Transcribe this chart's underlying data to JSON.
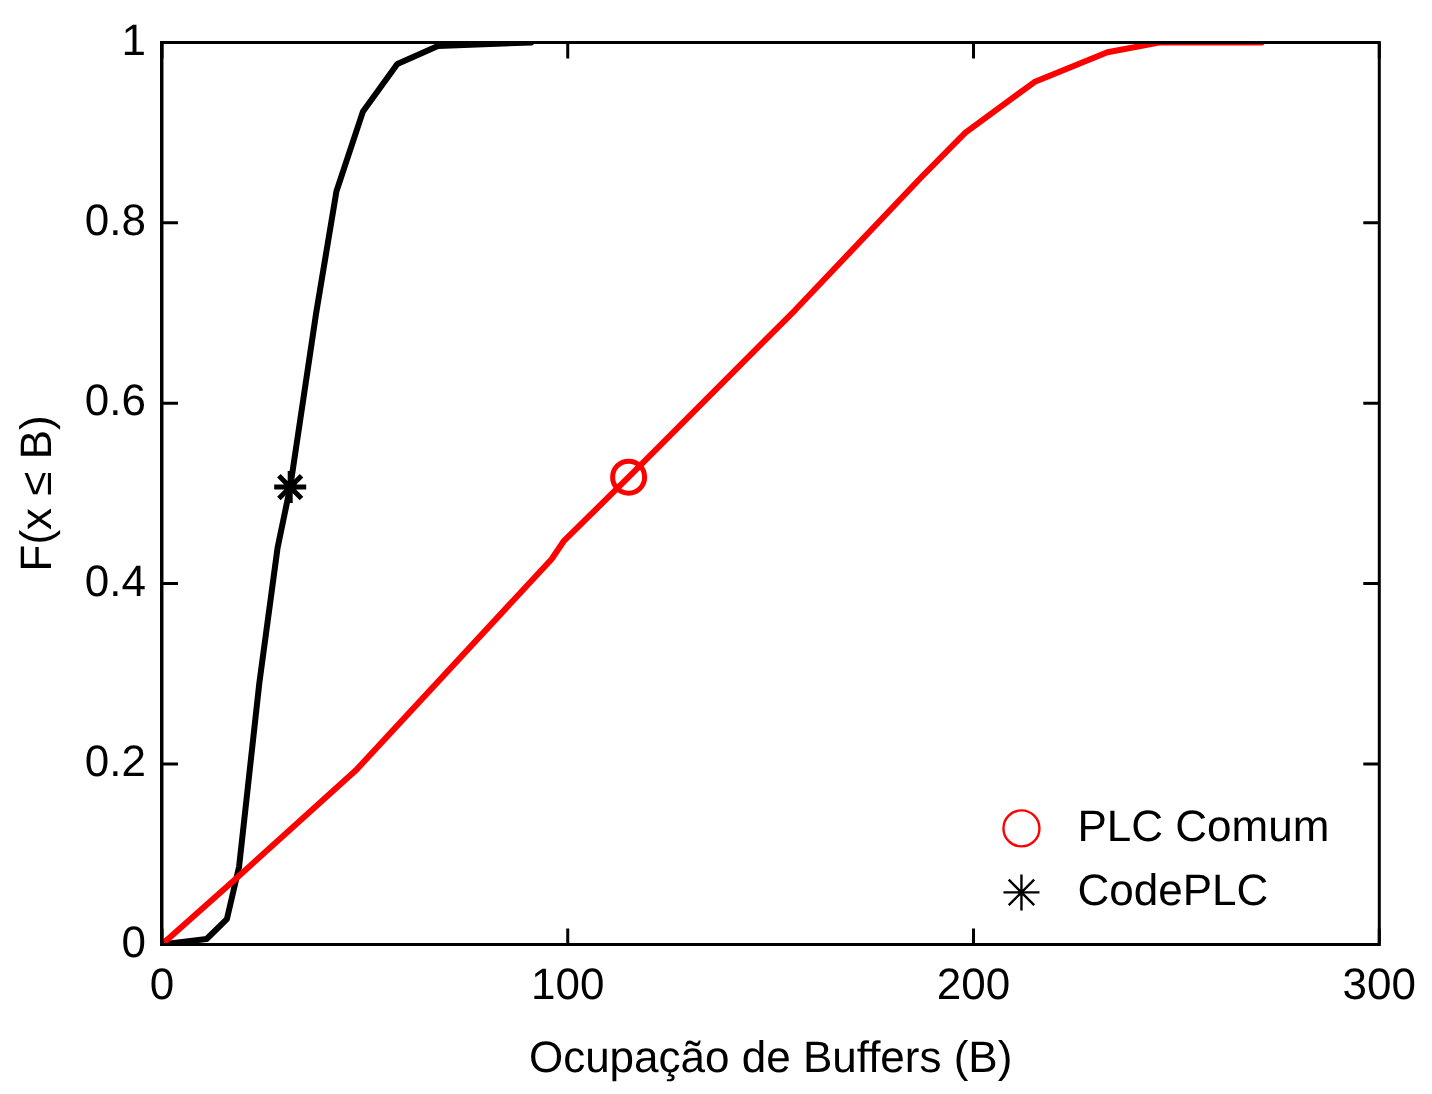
{
  "chart_data": {
    "type": "line",
    "xlabel": "Ocupação de Buffers (B)",
    "ylabel": "F(x ≤ B)",
    "xlim": [
      0,
      300
    ],
    "ylim": [
      0,
      1
    ],
    "xticks": [
      0,
      100,
      200,
      300
    ],
    "yticks": [
      0,
      0.2,
      0.4,
      0.6,
      0.8,
      1
    ],
    "grid": false,
    "legend": "bottom right",
    "line_style": "solid",
    "series": [
      {
        "color": "#ff0000",
        "marker": "none",
        "x": [
          0,
          18,
          48,
          96,
          99,
          115,
          156,
          187,
          198,
          215,
          233,
          246,
          271
        ],
        "values": [
          0,
          0.072,
          0.194,
          0.427,
          0.447,
          0.518,
          0.703,
          0.85,
          0.9,
          0.956,
          0.989,
          1,
          1
        ]
      },
      {
        "color": "#000000",
        "marker": "none",
        "x": [
          0,
          11,
          16,
          19,
          24,
          28.5,
          31.6,
          38,
          43,
          49.5,
          58,
          68,
          91
        ],
        "values": [
          0,
          0.006,
          0.028,
          0.086,
          0.29,
          0.44,
          0.507,
          0.7,
          0.835,
          0.923,
          0.976,
          0.996,
          1
        ]
      },
      {
        "name": "PLC Comum",
        "type": "scatter",
        "color": "#ff0000",
        "marker": "circle",
        "x": [
          115
        ],
        "values": [
          0.518
        ]
      },
      {
        "name": "CodePLC",
        "type": "scatter",
        "color": "#000000",
        "marker": "cross",
        "x": [
          31.6
        ],
        "values": [
          0.507
        ]
      }
    ]
  }
}
